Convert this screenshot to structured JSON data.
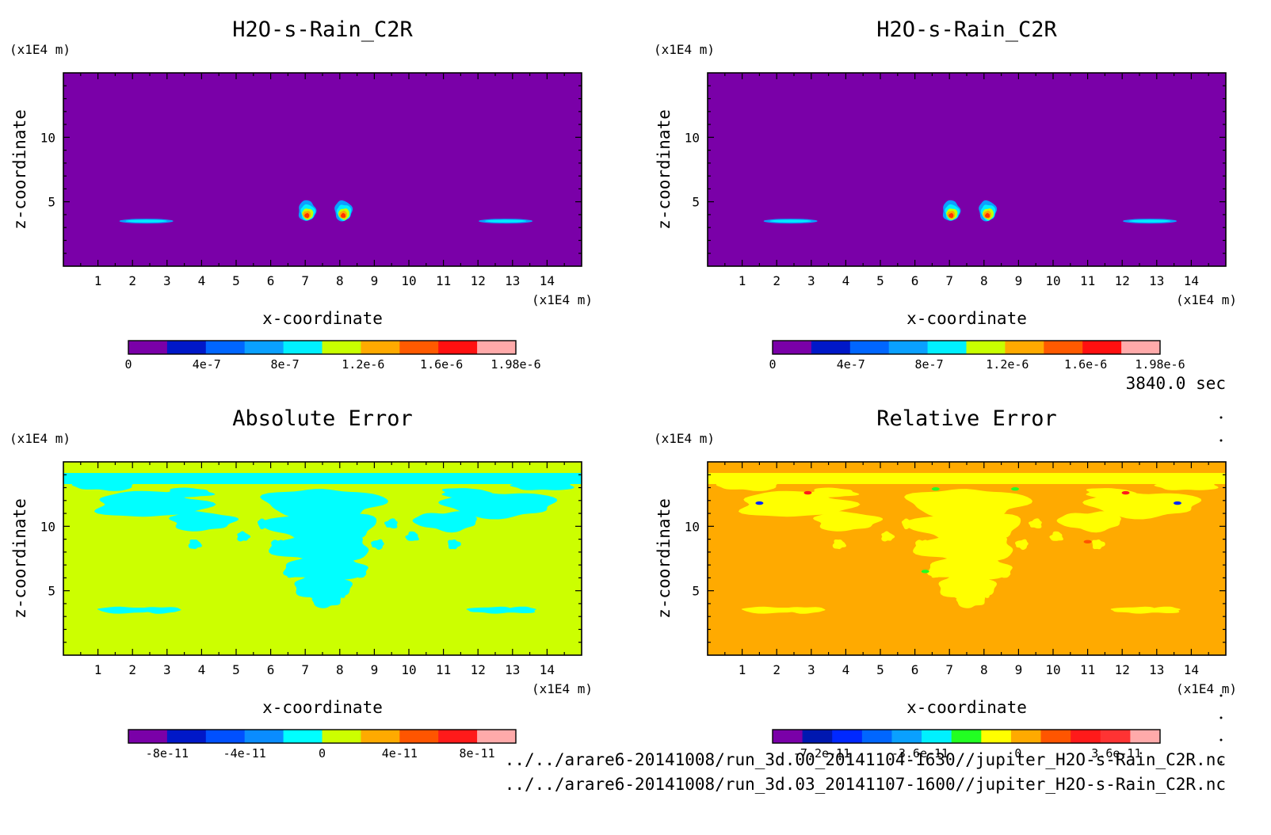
{
  "time_label": "3840.0 sec",
  "footer_lines": [
    "../../arare6-20141008/run_3d.00_20141104-1630//jupiter_H2O-s-Rain_C2R.nc",
    "../../arare6-20141008/run_3d.03_20141107-1600//jupiter_H2O-s-Rain_C2R.nc"
  ],
  "chart_data": [
    {
      "type": "contour",
      "title": "H2O-s-Rain_C2R",
      "xlabel": "x-coordinate",
      "ylabel": "z-coordinate",
      "x_unit": "(x1E4 m)",
      "y_unit": "(x1E4 m)",
      "xlim": [
        0,
        15
      ],
      "ylim": [
        0,
        15
      ],
      "x_ticks": [
        1,
        2,
        3,
        4,
        5,
        6,
        7,
        8,
        9,
        10,
        11,
        12,
        13,
        14
      ],
      "y_ticks": [
        5,
        10
      ],
      "background_level": 0,
      "colorbar": {
        "colors": [
          "#7a00a8",
          "#0018c8",
          "#0066ff",
          "#0aa0ff",
          "#00f0ff",
          "#c8ff00",
          "#ffaa00",
          "#ff5a00",
          "#ff1010",
          "#ffaaaa"
        ],
        "tick_labels": [
          "0",
          "4e-7",
          "8e-7",
          "1.2e-6",
          "1.6e-6",
          "1.98e-6"
        ],
        "tick_values": [
          0,
          4e-07,
          8e-07,
          1.2e-06,
          1.6e-06,
          1.98e-06
        ],
        "range": [
          0,
          1.98e-06
        ]
      },
      "features": [
        {
          "shape": "blob",
          "x": 7.05,
          "z": 4.3,
          "level": 1.7e-06
        },
        {
          "shape": "blob",
          "x": 8.1,
          "z": 4.3,
          "level": 1.7e-06
        },
        {
          "shape": "streak",
          "x": 2.4,
          "z": 3.5,
          "level": 1e-06
        },
        {
          "shape": "streak",
          "x": 12.8,
          "z": 3.5,
          "level": 1e-06
        }
      ]
    },
    {
      "type": "contour",
      "title": "H2O-s-Rain_C2R",
      "xlabel": "x-coordinate",
      "ylabel": "z-coordinate",
      "x_unit": "(x1E4 m)",
      "y_unit": "(x1E4 m)",
      "xlim": [
        0,
        15
      ],
      "ylim": [
        0,
        15
      ],
      "x_ticks": [
        1,
        2,
        3,
        4,
        5,
        6,
        7,
        8,
        9,
        10,
        11,
        12,
        13,
        14
      ],
      "y_ticks": [
        5,
        10
      ],
      "background_level": 0,
      "colorbar": {
        "colors": [
          "#7a00a8",
          "#0018c8",
          "#0066ff",
          "#0aa0ff",
          "#00f0ff",
          "#c8ff00",
          "#ffaa00",
          "#ff5a00",
          "#ff1010",
          "#ffaaaa"
        ],
        "tick_labels": [
          "0",
          "4e-7",
          "8e-7",
          "1.2e-6",
          "1.6e-6",
          "1.98e-6"
        ],
        "tick_values": [
          0,
          4e-07,
          8e-07,
          1.2e-06,
          1.6e-06,
          1.98e-06
        ],
        "range": [
          0,
          1.98e-06
        ]
      },
      "features": [
        {
          "shape": "blob",
          "x": 7.05,
          "z": 4.3,
          "level": 1.7e-06
        },
        {
          "shape": "blob",
          "x": 8.1,
          "z": 4.3,
          "level": 1.7e-06
        },
        {
          "shape": "streak",
          "x": 2.4,
          "z": 3.5,
          "level": 1e-06
        },
        {
          "shape": "streak",
          "x": 12.8,
          "z": 3.5,
          "level": 1e-06
        }
      ]
    },
    {
      "type": "contour",
      "title": "Absolute Error",
      "xlabel": "x-coordinate",
      "ylabel": "z-coordinate",
      "x_unit": "(x1E4 m)",
      "y_unit": "(x1E4 m)",
      "xlim": [
        0,
        15
      ],
      "ylim": [
        0,
        15
      ],
      "x_ticks": [
        1,
        2,
        3,
        4,
        5,
        6,
        7,
        8,
        9,
        10,
        11,
        12,
        13,
        14
      ],
      "y_ticks": [
        5,
        10
      ],
      "background_level": 0,
      "background_color": "#ccff00",
      "feature_color": "#00ffff",
      "colorbar": {
        "colors": [
          "#7a00a8",
          "#0018c8",
          "#0050ff",
          "#0a8cff",
          "#00ffff",
          "#ccff00",
          "#ffaa00",
          "#ff5500",
          "#ff1a1a",
          "#ffaaaa"
        ],
        "tick_labels": [
          "-8e-11",
          "-4e-11",
          "0",
          "4e-11",
          "8e-11"
        ],
        "tick_values": [
          -8e-11,
          -4e-11,
          0,
          4e-11,
          8e-11
        ],
        "range": [
          -1e-10,
          1e-10
        ]
      }
    },
    {
      "type": "contour",
      "title": "Relative Error",
      "xlabel": "x-coordinate",
      "ylabel": "z-coordinate",
      "x_unit": "(x1E4 m)",
      "y_unit": "(x1E4 m)",
      "xlim": [
        0,
        15
      ],
      "ylim": [
        0,
        15
      ],
      "x_ticks": [
        1,
        2,
        3,
        4,
        5,
        6,
        7,
        8,
        9,
        10,
        11,
        12,
        13,
        14
      ],
      "y_ticks": [
        5,
        10
      ],
      "background_level": 0,
      "background_color": "#ffaa00",
      "feature_color": "#ffff00",
      "colorbar": {
        "colors": [
          "#7a00a8",
          "#0018b0",
          "#0028ff",
          "#0066ff",
          "#0aa0ff",
          "#00f0ff",
          "#22ff22",
          "#ffff00",
          "#ffaa00",
          "#ff5500",
          "#ff1a1a",
          "#ff3333",
          "#ffaaaa"
        ],
        "tick_labels": [
          "-7.2e-11",
          "-3.6e-11",
          "0",
          "3.6e-11"
        ],
        "tick_values": [
          -7.2e-11,
          -3.6e-11,
          0,
          3.6e-11
        ],
        "range": [
          -9e-11,
          5.2e-11
        ]
      }
    }
  ]
}
